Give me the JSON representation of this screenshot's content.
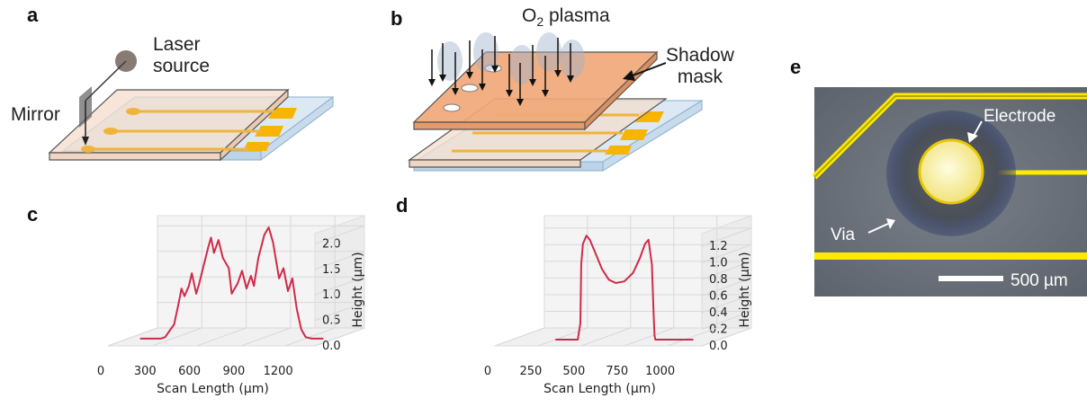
{
  "panels": {
    "a": {
      "letter": "a",
      "laser_line1": "Laser",
      "laser_line2": "source",
      "mirror": "Mirror"
    },
    "b": {
      "letter": "b",
      "plasma_prefix": "O",
      "plasma_sub": "2",
      "plasma_suffix": " plasma",
      "shadow_line1": "Shadow",
      "shadow_line2": "mask"
    },
    "c": {
      "letter": "c"
    },
    "d": {
      "letter": "d"
    },
    "e": {
      "letter": "e",
      "electrode": "Electrode",
      "via": "Via",
      "scale": "500 µm"
    }
  },
  "chart_data": [
    {
      "id": "c",
      "type": "line",
      "x_ticks": [
        "0",
        "300",
        "600",
        "900",
        "1200"
      ],
      "xlabel": "Scan Length (μm)",
      "y_ticks": [
        "0.0",
        "0.5",
        "1.0",
        "1.5",
        "2.0"
      ],
      "ylabel": "Height (μm)",
      "xlim": [
        0,
        1400
      ],
      "ylim": [
        0,
        2.2
      ],
      "grid": true,
      "color": "#d02a4a",
      "series": [
        {
          "x": [
            100,
            240,
            270,
            330,
            360,
            380,
            400,
            430,
            450,
            480,
            500,
            530,
            560,
            580,
            600,
            630,
            660,
            700,
            720,
            760,
            790,
            820,
            850,
            870,
            900,
            940,
            970,
            1000,
            1040,
            1070,
            1100,
            1130,
            1160,
            1190,
            1220,
            1260,
            1300,
            1340
          ],
          "y": [
            0.02,
            0.02,
            0.05,
            0.3,
            0.7,
            1.0,
            0.85,
            1.05,
            1.3,
            0.9,
            1.1,
            1.45,
            1.8,
            2.0,
            1.7,
            1.95,
            1.6,
            1.4,
            0.9,
            1.1,
            1.35,
            1.0,
            1.25,
            1.05,
            1.6,
            2.05,
            2.2,
            1.9,
            1.2,
            1.4,
            0.95,
            1.2,
            0.6,
            0.2,
            0.05,
            0.02,
            0.02,
            0.02
          ]
        }
      ]
    },
    {
      "id": "d",
      "type": "line",
      "x_ticks": [
        "0",
        "250",
        "500",
        "750",
        "1000"
      ],
      "xlabel": "Scan Length (μm)",
      "y_ticks": [
        "0.0",
        "0.2",
        "0.4",
        "0.6",
        "0.8",
        "1.0",
        "1.2"
      ],
      "ylabel": "Height (μm)",
      "xlim": [
        0,
        1200
      ],
      "ylim": [
        0,
        1.35
      ],
      "grid": true,
      "color": "#d02a4a",
      "series": [
        {
          "x": [
            250,
            380,
            395,
            400,
            410,
            430,
            450,
            480,
            520,
            560,
            600,
            650,
            700,
            740,
            770,
            790,
            810,
            820,
            825,
            830,
            900,
            1050
          ],
          "y": [
            0.0,
            0.0,
            0.2,
            0.9,
            1.15,
            1.25,
            1.2,
            1.05,
            0.85,
            0.72,
            0.68,
            0.7,
            0.8,
            0.98,
            1.15,
            1.2,
            0.9,
            0.3,
            0.05,
            0.0,
            0.0,
            0.0
          ]
        }
      ]
    }
  ]
}
